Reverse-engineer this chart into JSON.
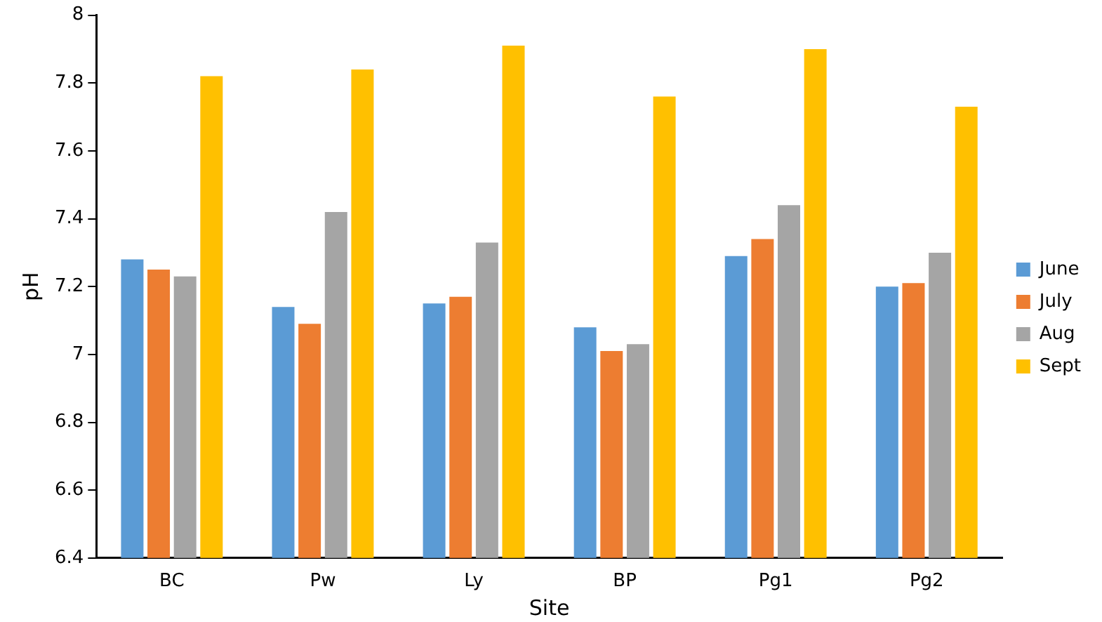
{
  "chart_data": {
    "type": "bar",
    "xlabel": "Site",
    "ylabel": "pH",
    "categories": [
      "BC",
      "Pw",
      "Ly",
      "BP",
      "Pg1",
      "Pg2"
    ],
    "series": [
      {
        "name": "June",
        "color": "#5b9bd5",
        "values": [
          7.28,
          7.14,
          7.15,
          7.08,
          7.29,
          7.2
        ]
      },
      {
        "name": "July",
        "color": "#ed7d31",
        "values": [
          7.25,
          7.09,
          7.17,
          7.01,
          7.34,
          7.21
        ]
      },
      {
        "name": "Aug",
        "color": "#a5a5a5",
        "values": [
          7.23,
          7.42,
          7.33,
          7.03,
          7.44,
          7.3
        ]
      },
      {
        "name": "Sept",
        "color": "#ffc000",
        "values": [
          7.82,
          7.84,
          7.91,
          7.76,
          7.9,
          7.73
        ]
      }
    ],
    "ylim": [
      6.4,
      8
    ],
    "yticks": [
      6.4,
      6.6,
      6.8,
      7,
      7.2,
      7.4,
      7.6,
      7.8,
      8
    ],
    "grid": false,
    "legend": "right"
  }
}
